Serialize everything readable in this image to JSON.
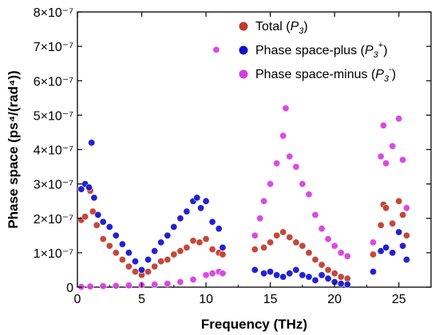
{
  "chart_data": {
    "type": "scatter",
    "xlabel": "Frequency (THz)",
    "ylabel": "Phase space (ps⁴/(rad⁴))",
    "xlim": [
      0,
      27.5
    ],
    "ylim": [
      0,
      8e-07
    ],
    "xticks": [
      0,
      5,
      10,
      15,
      20,
      25
    ],
    "xtick_labels": [
      "0",
      "5",
      "10",
      "15",
      "20",
      "25"
    ],
    "yticks": [
      0,
      1e-07,
      2e-07,
      3e-07,
      4e-07,
      5e-07,
      6e-07,
      7e-07,
      8e-07
    ],
    "ytick_labels": [
      "0",
      "1×10⁻⁷",
      "2×10⁻⁷",
      "3×10⁻⁷",
      "4×10⁻⁷",
      "5×10⁻⁷",
      "6×10⁻⁷",
      "7×10⁻⁷",
      "8×10⁻⁷"
    ],
    "legend_position": "top-right",
    "grid": false,
    "series": [
      {
        "name": "Total (P3)",
        "legend_main": "Total (",
        "legend_sub": "3",
        "legend_sup": "",
        "legend_end": ")",
        "color": "#c0392b",
        "points": [
          [
            0.3,
            1.95e-07
          ],
          [
            0.6,
            2.05e-07
          ],
          [
            1.0,
            2.8e-07
          ],
          [
            1.2,
            2.2e-07
          ],
          [
            1.5,
            1.8e-07
          ],
          [
            2.0,
            1.4e-07
          ],
          [
            2.5,
            1.2e-07
          ],
          [
            3.0,
            1e-07
          ],
          [
            3.5,
            8e-08
          ],
          [
            4.0,
            6e-08
          ],
          [
            4.5,
            4.5e-08
          ],
          [
            5.0,
            3.5e-08
          ],
          [
            5.5,
            4.5e-08
          ],
          [
            6.0,
            6e-08
          ],
          [
            6.5,
            7.5e-08
          ],
          [
            7.0,
            8e-08
          ],
          [
            7.5,
            9.5e-08
          ],
          [
            8.0,
            1.05e-07
          ],
          [
            8.5,
            1.15e-07
          ],
          [
            9.0,
            1.35e-07
          ],
          [
            9.5,
            1.3e-07
          ],
          [
            10.0,
            1.4e-07
          ],
          [
            10.5,
            1.1e-07
          ],
          [
            11.0,
            1e-07
          ],
          [
            11.3,
            9.5e-08
          ],
          [
            13.8,
            1.1e-07
          ],
          [
            14.5,
            1.15e-07
          ],
          [
            15.0,
            1.3e-07
          ],
          [
            15.5,
            1.5e-07
          ],
          [
            16.0,
            1.6e-07
          ],
          [
            16.5,
            1.45e-07
          ],
          [
            17.0,
            1.3e-07
          ],
          [
            17.5,
            1.2e-07
          ],
          [
            18.0,
            1e-07
          ],
          [
            18.5,
            8e-08
          ],
          [
            19.0,
            6.5e-08
          ],
          [
            19.5,
            5e-08
          ],
          [
            20.0,
            4e-08
          ],
          [
            20.5,
            3e-08
          ],
          [
            21.0,
            2.5e-08
          ],
          [
            23.0,
            9.5e-08
          ],
          [
            23.6,
            1.8e-07
          ],
          [
            23.8,
            2.4e-07
          ],
          [
            24.0,
            2.3e-07
          ],
          [
            24.5,
            1.85e-07
          ],
          [
            25.0,
            2.5e-07
          ],
          [
            25.3,
            2.1e-07
          ],
          [
            25.6,
            1.5e-07
          ]
        ]
      },
      {
        "name": "Phase space-plus (P3+)",
        "legend_main": "Phase space-plus (",
        "legend_sub": "3",
        "legend_sup": "+",
        "legend_end": ")",
        "color": "#1010cc",
        "points": [
          [
            0.3,
            2.85e-07
          ],
          [
            0.6,
            3e-07
          ],
          [
            0.9,
            2.9e-07
          ],
          [
            1.1,
            4.2e-07
          ],
          [
            1.3,
            2.6e-07
          ],
          [
            1.6,
            2.1e-07
          ],
          [
            2.0,
            1.9e-07
          ],
          [
            2.5,
            1.75e-07
          ],
          [
            3.0,
            1.5e-07
          ],
          [
            3.5,
            1.25e-07
          ],
          [
            4.0,
            1e-07
          ],
          [
            4.5,
            7.5e-08
          ],
          [
            5.0,
            5e-08
          ],
          [
            5.5,
            8e-08
          ],
          [
            6.0,
            1.05e-07
          ],
          [
            6.5,
            1.3e-07
          ],
          [
            7.0,
            1.5e-07
          ],
          [
            7.5,
            1.75e-07
          ],
          [
            8.0,
            2e-07
          ],
          [
            8.5,
            2.2e-07
          ],
          [
            9.0,
            2.5e-07
          ],
          [
            9.3,
            2.6e-07
          ],
          [
            9.6,
            2.3e-07
          ],
          [
            10.0,
            2.5e-07
          ],
          [
            10.5,
            1.9e-07
          ],
          [
            11.0,
            1.7e-07
          ],
          [
            11.3,
            1.15e-07
          ],
          [
            13.8,
            5e-08
          ],
          [
            14.5,
            4e-08
          ],
          [
            15.0,
            4.5e-08
          ],
          [
            15.5,
            3.5e-08
          ],
          [
            16.0,
            3e-08
          ],
          [
            16.5,
            4e-08
          ],
          [
            17.0,
            5e-08
          ],
          [
            17.5,
            3.5e-08
          ],
          [
            18.0,
            3e-08
          ],
          [
            18.5,
            2e-08
          ],
          [
            19.0,
            3.5e-08
          ],
          [
            19.5,
            2.5e-08
          ],
          [
            20.0,
            1.5e-08
          ],
          [
            20.5,
            1e-08
          ],
          [
            21.0,
            8e-09
          ],
          [
            23.0,
            4.5e-08
          ],
          [
            23.6,
            1.05e-07
          ],
          [
            24.0,
            1.15e-07
          ],
          [
            24.5,
            1e-07
          ],
          [
            25.0,
            1.6e-07
          ],
          [
            25.3,
            1.2e-07
          ],
          [
            25.6,
            8e-08
          ]
        ]
      },
      {
        "name": "Phase space-minus (P3-)",
        "legend_main": "Phase space-minus (",
        "legend_sub": "3",
        "legend_sup": "-",
        "legend_end": ")",
        "color": "#d63ce0",
        "points": [
          [
            0.3,
            1e-09
          ],
          [
            1.0,
            2e-09
          ],
          [
            2.0,
            3e-09
          ],
          [
            3.0,
            4e-09
          ],
          [
            4.0,
            5e-09
          ],
          [
            5.0,
            6e-09
          ],
          [
            6.0,
            8e-09
          ],
          [
            7.0,
            1e-08
          ],
          [
            8.0,
            1.5e-08
          ],
          [
            9.0,
            2.2e-08
          ],
          [
            10.0,
            3.5e-08
          ],
          [
            10.5,
            4e-08
          ],
          [
            11.0,
            4.5e-08
          ],
          [
            11.3,
            4e-08
          ],
          [
            10.8,
            6.9e-07
          ],
          [
            13.8,
            1.5e-07
          ],
          [
            14.2,
            2e-07
          ],
          [
            14.5,
            2.5e-07
          ],
          [
            15.0,
            3e-07
          ],
          [
            15.5,
            3.6e-07
          ],
          [
            16.0,
            4.4e-07
          ],
          [
            16.2,
            5.2e-07
          ],
          [
            16.5,
            3.8e-07
          ],
          [
            17.0,
            3.5e-07
          ],
          [
            17.5,
            3e-07
          ],
          [
            18.0,
            2.7e-07
          ],
          [
            18.5,
            2.1e-07
          ],
          [
            19.0,
            1.7e-07
          ],
          [
            19.5,
            1.4e-07
          ],
          [
            20.0,
            1.2e-07
          ],
          [
            20.5,
            1e-07
          ],
          [
            21.0,
            9e-08
          ],
          [
            23.0,
            1.3e-07
          ],
          [
            23.6,
            3.8e-07
          ],
          [
            23.8,
            4.7e-07
          ],
          [
            24.0,
            3.6e-07
          ],
          [
            24.5,
            4.1e-07
          ],
          [
            25.0,
            4.9e-07
          ],
          [
            25.3,
            3.7e-07
          ],
          [
            25.6,
            2.3e-07
          ]
        ]
      }
    ]
  }
}
